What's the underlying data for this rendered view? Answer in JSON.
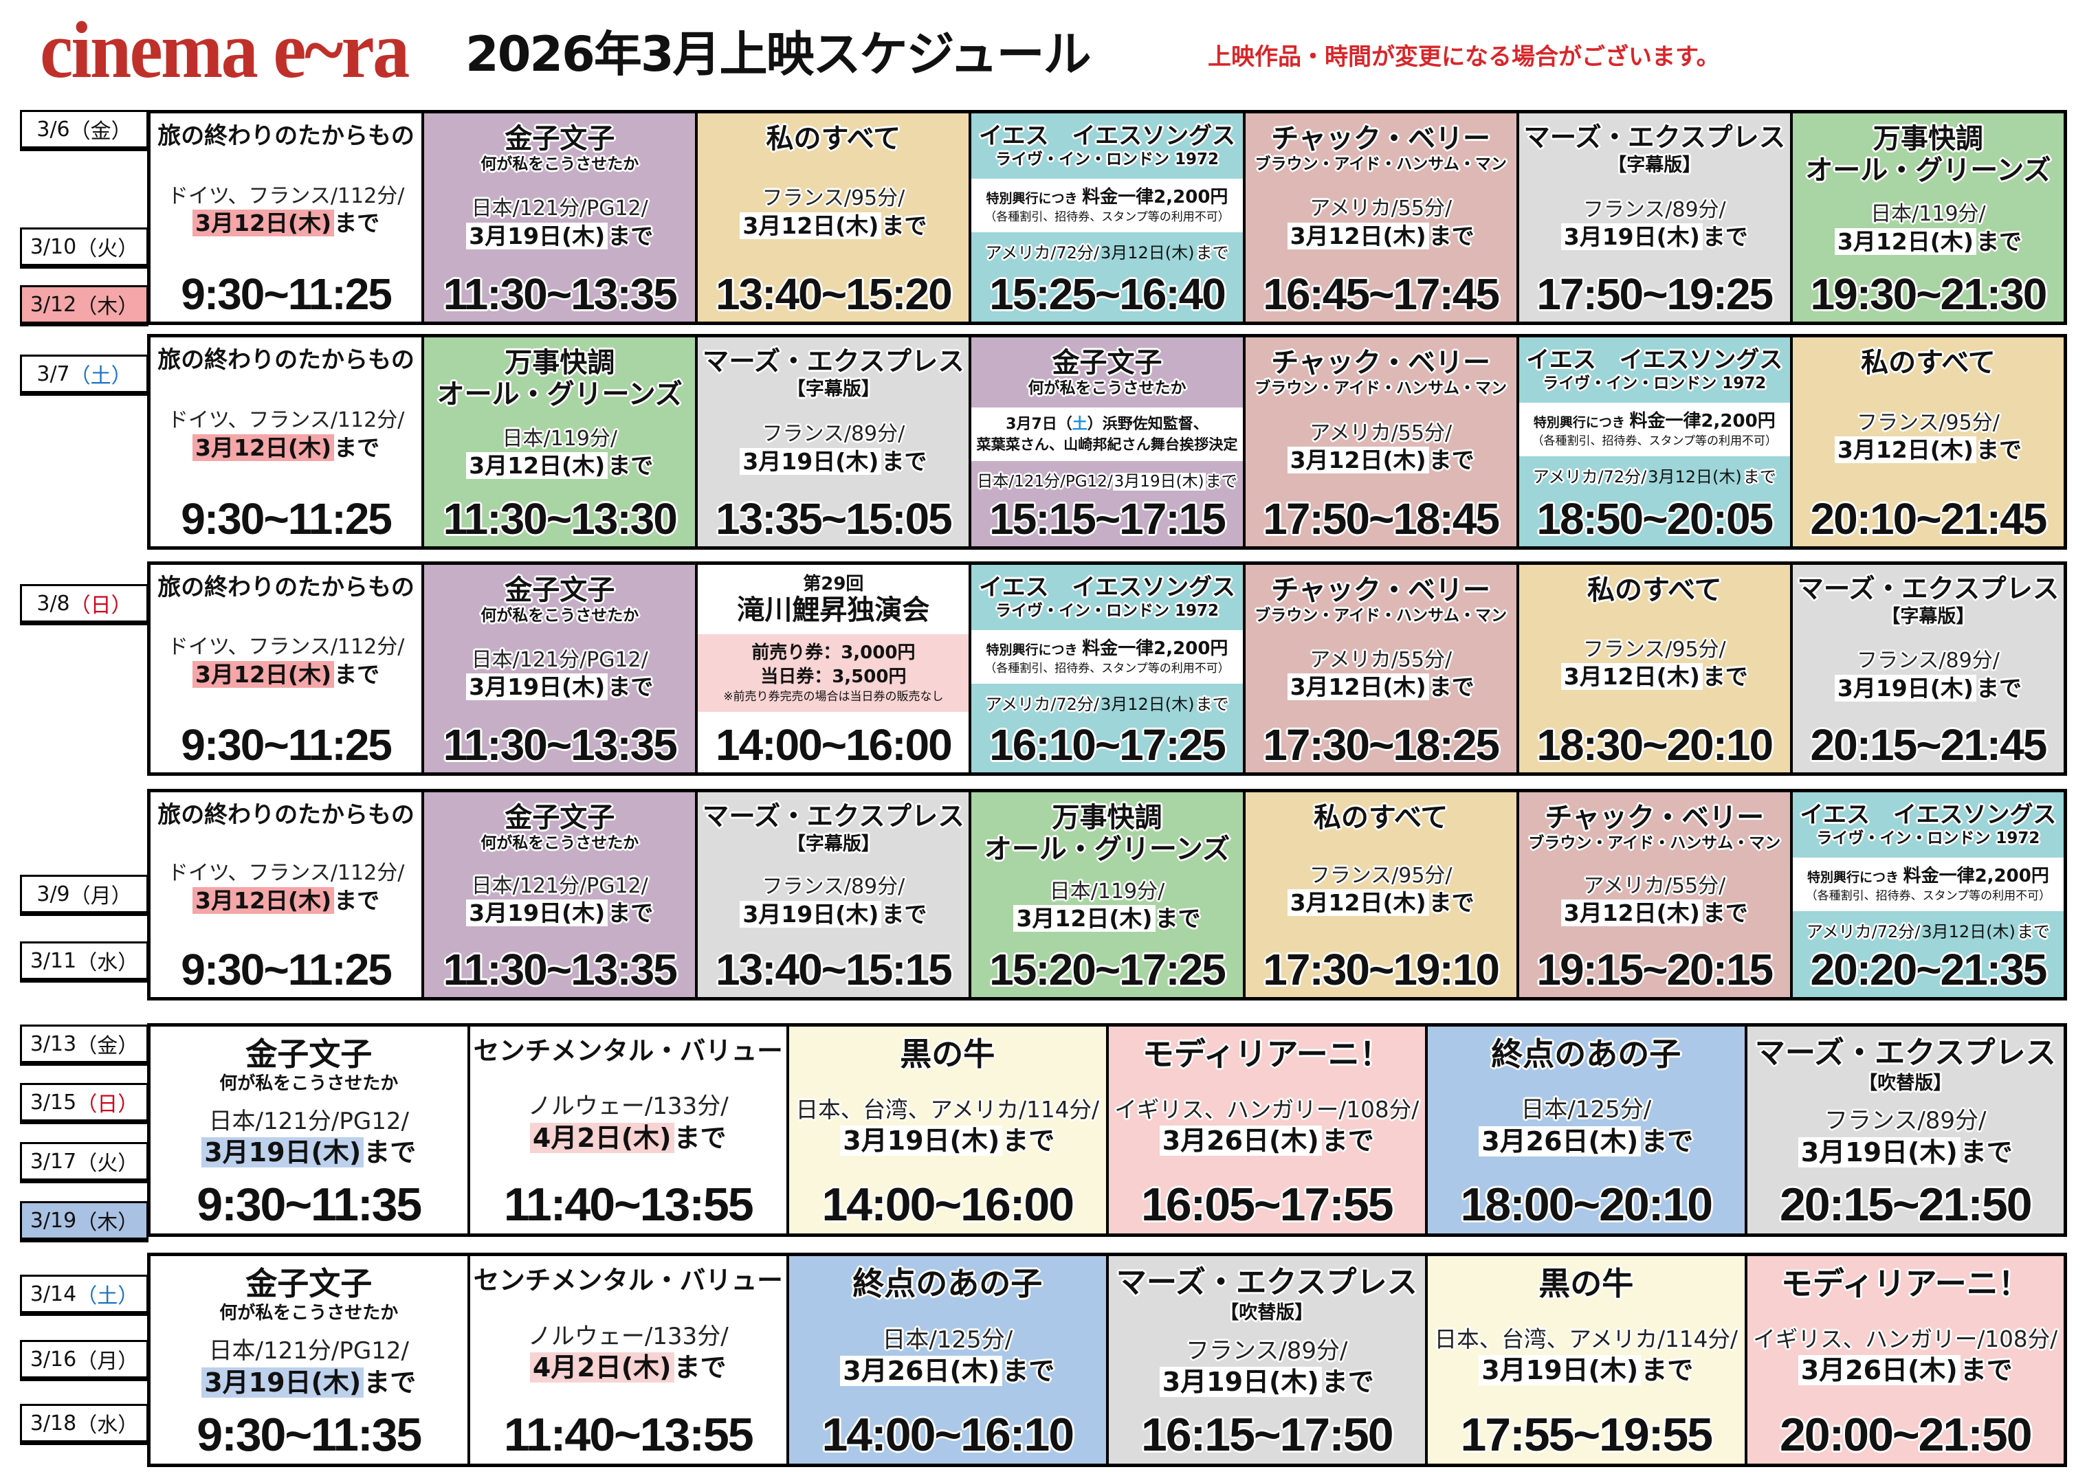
{
  "header": {
    "logo": "cinema e~ra",
    "title": "2026年3月上映スケジュール",
    "notice": "上映作品・時間が変更になる場合がございます。"
  },
  "colors": {
    "brand": "#c0302a",
    "notice": "#d8262a",
    "saturday": "#1a73c8",
    "sunday": "#d0021b"
  },
  "common": {
    "until_suffix": "まで"
  },
  "films": {
    "tabi": {
      "bg": "#ffffff",
      "title": "旅の終わりのたからもの",
      "info": "ドイツ、フランス/112分/",
      "until": "3月12日(木)",
      "hl": "#f4a6a8"
    },
    "kaneko": {
      "bg": "#c5aec6",
      "title": "金子文子",
      "sub": "何が私をこうさせたか",
      "info": "日本/121分/PG12/",
      "until": "3月19日(木)",
      "hl": "#ffffff"
    },
    "kaneko_event": {
      "bg": "#c5aec6",
      "title": "金子文子",
      "sub": "何が私をこうさせたか",
      "band": {
        "bg": "#ffffff",
        "lines": [
          [
            {
              "text": "3月7日（",
              "k": "md"
            },
            {
              "text": "土",
              "k": "md",
              "color": "#1a8fe0"
            },
            {
              "text": "）浜野佐知監督、",
              "k": "md"
            }
          ],
          [
            {
              "text": "菜葉菜さん、山崎邦紀さん舞台挨拶決定",
              "k": "md"
            }
          ]
        ]
      },
      "inline": true,
      "info": "日本/121分/PG12/",
      "until": "3月19日(木)",
      "hl": "#ffffff"
    },
    "watashi": {
      "bg": "#eed9ab",
      "title": "私のすべて",
      "info": "フランス/95分/",
      "until": "3月12日(木)",
      "hl": "#ffffff"
    },
    "yes": {
      "bg": "#9dd5d8",
      "title": "イエス　イエスソングス",
      "sub": "ライヴ・イン・ロンドン 1972",
      "band": {
        "bg": "#ffffff",
        "lines": [
          [
            {
              "text": "特別興行につき ",
              "k": "sm"
            },
            {
              "text": "料金一律2,200円",
              "k": "lg"
            }
          ],
          [
            {
              "text": "（各種割引、招待券、スタンプ等の利用不可）",
              "k": "xs"
            }
          ]
        ]
      },
      "inline": true,
      "info": "アメリカ/72分/",
      "until": "3月12日(木)",
      "hl": "transparent"
    },
    "chuck": {
      "bg": "#deb8b5",
      "title": "チャック・ベリー",
      "sub": "ブラウン・アイド・ハンサム・マン",
      "info": "アメリカ/55分/",
      "until": "3月12日(木)",
      "hl": "#ffffff"
    },
    "mars_sub": {
      "bg": "#dcdcdc",
      "title": "マーズ・エクスプレス",
      "tag": "【字幕版】",
      "info": "フランス/89分/",
      "until": "3月19日(木)",
      "hl": "#ffffff"
    },
    "banji": {
      "bg": "#a9d4a3",
      "title": "万事快調",
      "title2": "オール・グリーンズ",
      "info": "日本/119分/",
      "until": "3月12日(木)",
      "hl": "#ffffff"
    },
    "takigawa": {
      "bg": "#ffffff",
      "pre": "第29回",
      "title": "滝川鯉昇独演会",
      "band": {
        "bg": "#f8d4d4",
        "lines": [
          [
            {
              "text": "前売り券：3,000円",
              "k": "lg"
            }
          ],
          [
            {
              "text": "当日券：3,500円",
              "k": "lg"
            }
          ],
          [
            {
              "text": "※前売り券完売の場合は当日券の販売なし",
              "k": "xs"
            }
          ]
        ]
      }
    },
    "kaneko2": {
      "bg": "#ffffff",
      "title": "金子文子",
      "sub": "何が私をこうさせたか",
      "info": "日本/121分/PG12/",
      "until": "3月19日(木)",
      "hl": "#bdd0ec"
    },
    "senti": {
      "bg": "#ffffff",
      "title": "センチメンタル・バリュー",
      "info": "ノルウェー/133分/",
      "until": "4月2日(木)",
      "hl": "#f8d3d3"
    },
    "kuro": {
      "bg": "#fbf7dc",
      "title": "黒の牛",
      "info": "日本、台湾、アメリカ/114分/",
      "until": "3月19日(木)",
      "hl": "#ffffff"
    },
    "modi": {
      "bg": "#f8d0cf",
      "title": "モディリアーニ！",
      "info": "イギリス、ハンガリー/108分/",
      "until": "3月26日(木)",
      "hl": "#ffffff"
    },
    "shuten": {
      "bg": "#abc8e8",
      "title": "終点のあの子",
      "info": "日本/125分/",
      "until": "3月26日(木)",
      "hl": "#ffffff"
    },
    "mars_dub": {
      "bg": "#dcdcdc",
      "title": "マーズ・エクスプレス",
      "tag": "【吹替版】",
      "info": "フランス/89分/",
      "until": "3月19日(木)",
      "hl": "#ffffff"
    }
  },
  "blocks": [
    {
      "dates": [
        {
          "md": "3/6",
          "dow": "金"
        },
        {
          "md": "3/10",
          "dow": "火"
        },
        {
          "md": "3/12",
          "dow": "木",
          "bg": "#f4a6a8"
        }
      ],
      "cells": [
        {
          "film": "tabi",
          "time": "9:30~11:25"
        },
        {
          "film": "kaneko",
          "time": "11:30~13:35"
        },
        {
          "film": "watashi",
          "time": "13:40~15:20"
        },
        {
          "film": "yes",
          "time": "15:25~16:40"
        },
        {
          "film": "chuck",
          "time": "16:45~17:45"
        },
        {
          "film": "mars_sub",
          "time": "17:50~19:25"
        },
        {
          "film": "banji",
          "time": "19:30~21:30"
        }
      ]
    },
    {
      "dates": [
        {
          "md": "3/7",
          "dow": "土",
          "color": "#1a73c8"
        }
      ],
      "cells": [
        {
          "film": "tabi",
          "time": "9:30~11:25"
        },
        {
          "film": "banji",
          "time": "11:30~13:30"
        },
        {
          "film": "mars_sub",
          "time": "13:35~15:05"
        },
        {
          "film": "kaneko_event",
          "time": "15:15~17:15"
        },
        {
          "film": "chuck",
          "time": "17:50~18:45"
        },
        {
          "film": "yes",
          "time": "18:50~20:05"
        },
        {
          "film": "watashi",
          "time": "20:10~21:45"
        }
      ]
    },
    {
      "dates": [
        {
          "md": "3/8",
          "dow": "日",
          "color": "#d0021b"
        }
      ],
      "cells": [
        {
          "film": "tabi",
          "time": "9:30~11:25"
        },
        {
          "film": "kaneko",
          "time": "11:30~13:35"
        },
        {
          "film": "takigawa",
          "time": "14:00~16:00"
        },
        {
          "film": "yes",
          "time": "16:10~17:25"
        },
        {
          "film": "chuck",
          "time": "17:30~18:25"
        },
        {
          "film": "watashi",
          "time": "18:30~20:10"
        },
        {
          "film": "mars_sub",
          "time": "20:15~21:45"
        }
      ]
    },
    {
      "dates": [
        {
          "md": "3/9",
          "dow": "月"
        },
        {
          "md": "3/11",
          "dow": "水"
        }
      ],
      "cells": [
        {
          "film": "tabi",
          "time": "9:30~11:25"
        },
        {
          "film": "kaneko",
          "time": "11:30~13:35"
        },
        {
          "film": "mars_sub",
          "time": "13:40~15:15"
        },
        {
          "film": "banji",
          "time": "15:20~17:25"
        },
        {
          "film": "watashi",
          "time": "17:30~19:10"
        },
        {
          "film": "chuck",
          "time": "19:15~20:15"
        },
        {
          "film": "yes",
          "time": "20:20~21:35"
        }
      ]
    },
    {
      "dates": [
        {
          "md": "3/13",
          "dow": "金"
        },
        {
          "md": "3/15",
          "dow": "日",
          "color": "#d0021b"
        },
        {
          "md": "3/17",
          "dow": "火"
        },
        {
          "md": "3/19",
          "dow": "木",
          "bg": "#a9c1e3"
        }
      ],
      "cells": [
        {
          "film": "kaneko2",
          "time": "9:30~11:35"
        },
        {
          "film": "senti",
          "time": "11:40~13:55"
        },
        {
          "film": "kuro",
          "time": "14:00~16:00"
        },
        {
          "film": "modi",
          "time": "16:05~17:55"
        },
        {
          "film": "shuten",
          "time": "18:00~20:10"
        },
        {
          "film": "mars_dub",
          "time": "20:15~21:50"
        }
      ]
    },
    {
      "dates": [
        {
          "md": "3/14",
          "dow": "土",
          "color": "#1a73c8"
        },
        {
          "md": "3/16",
          "dow": "月"
        },
        {
          "md": "3/18",
          "dow": "水"
        }
      ],
      "cells": [
        {
          "film": "kaneko2",
          "time": "9:30~11:35"
        },
        {
          "film": "senti",
          "time": "11:40~13:55"
        },
        {
          "film": "shuten",
          "time": "14:00~16:10"
        },
        {
          "film": "mars_dub",
          "time": "16:15~17:50"
        },
        {
          "film": "kuro",
          "time": "17:55~19:55"
        },
        {
          "film": "modi",
          "time": "20:00~21:50"
        }
      ]
    }
  ]
}
